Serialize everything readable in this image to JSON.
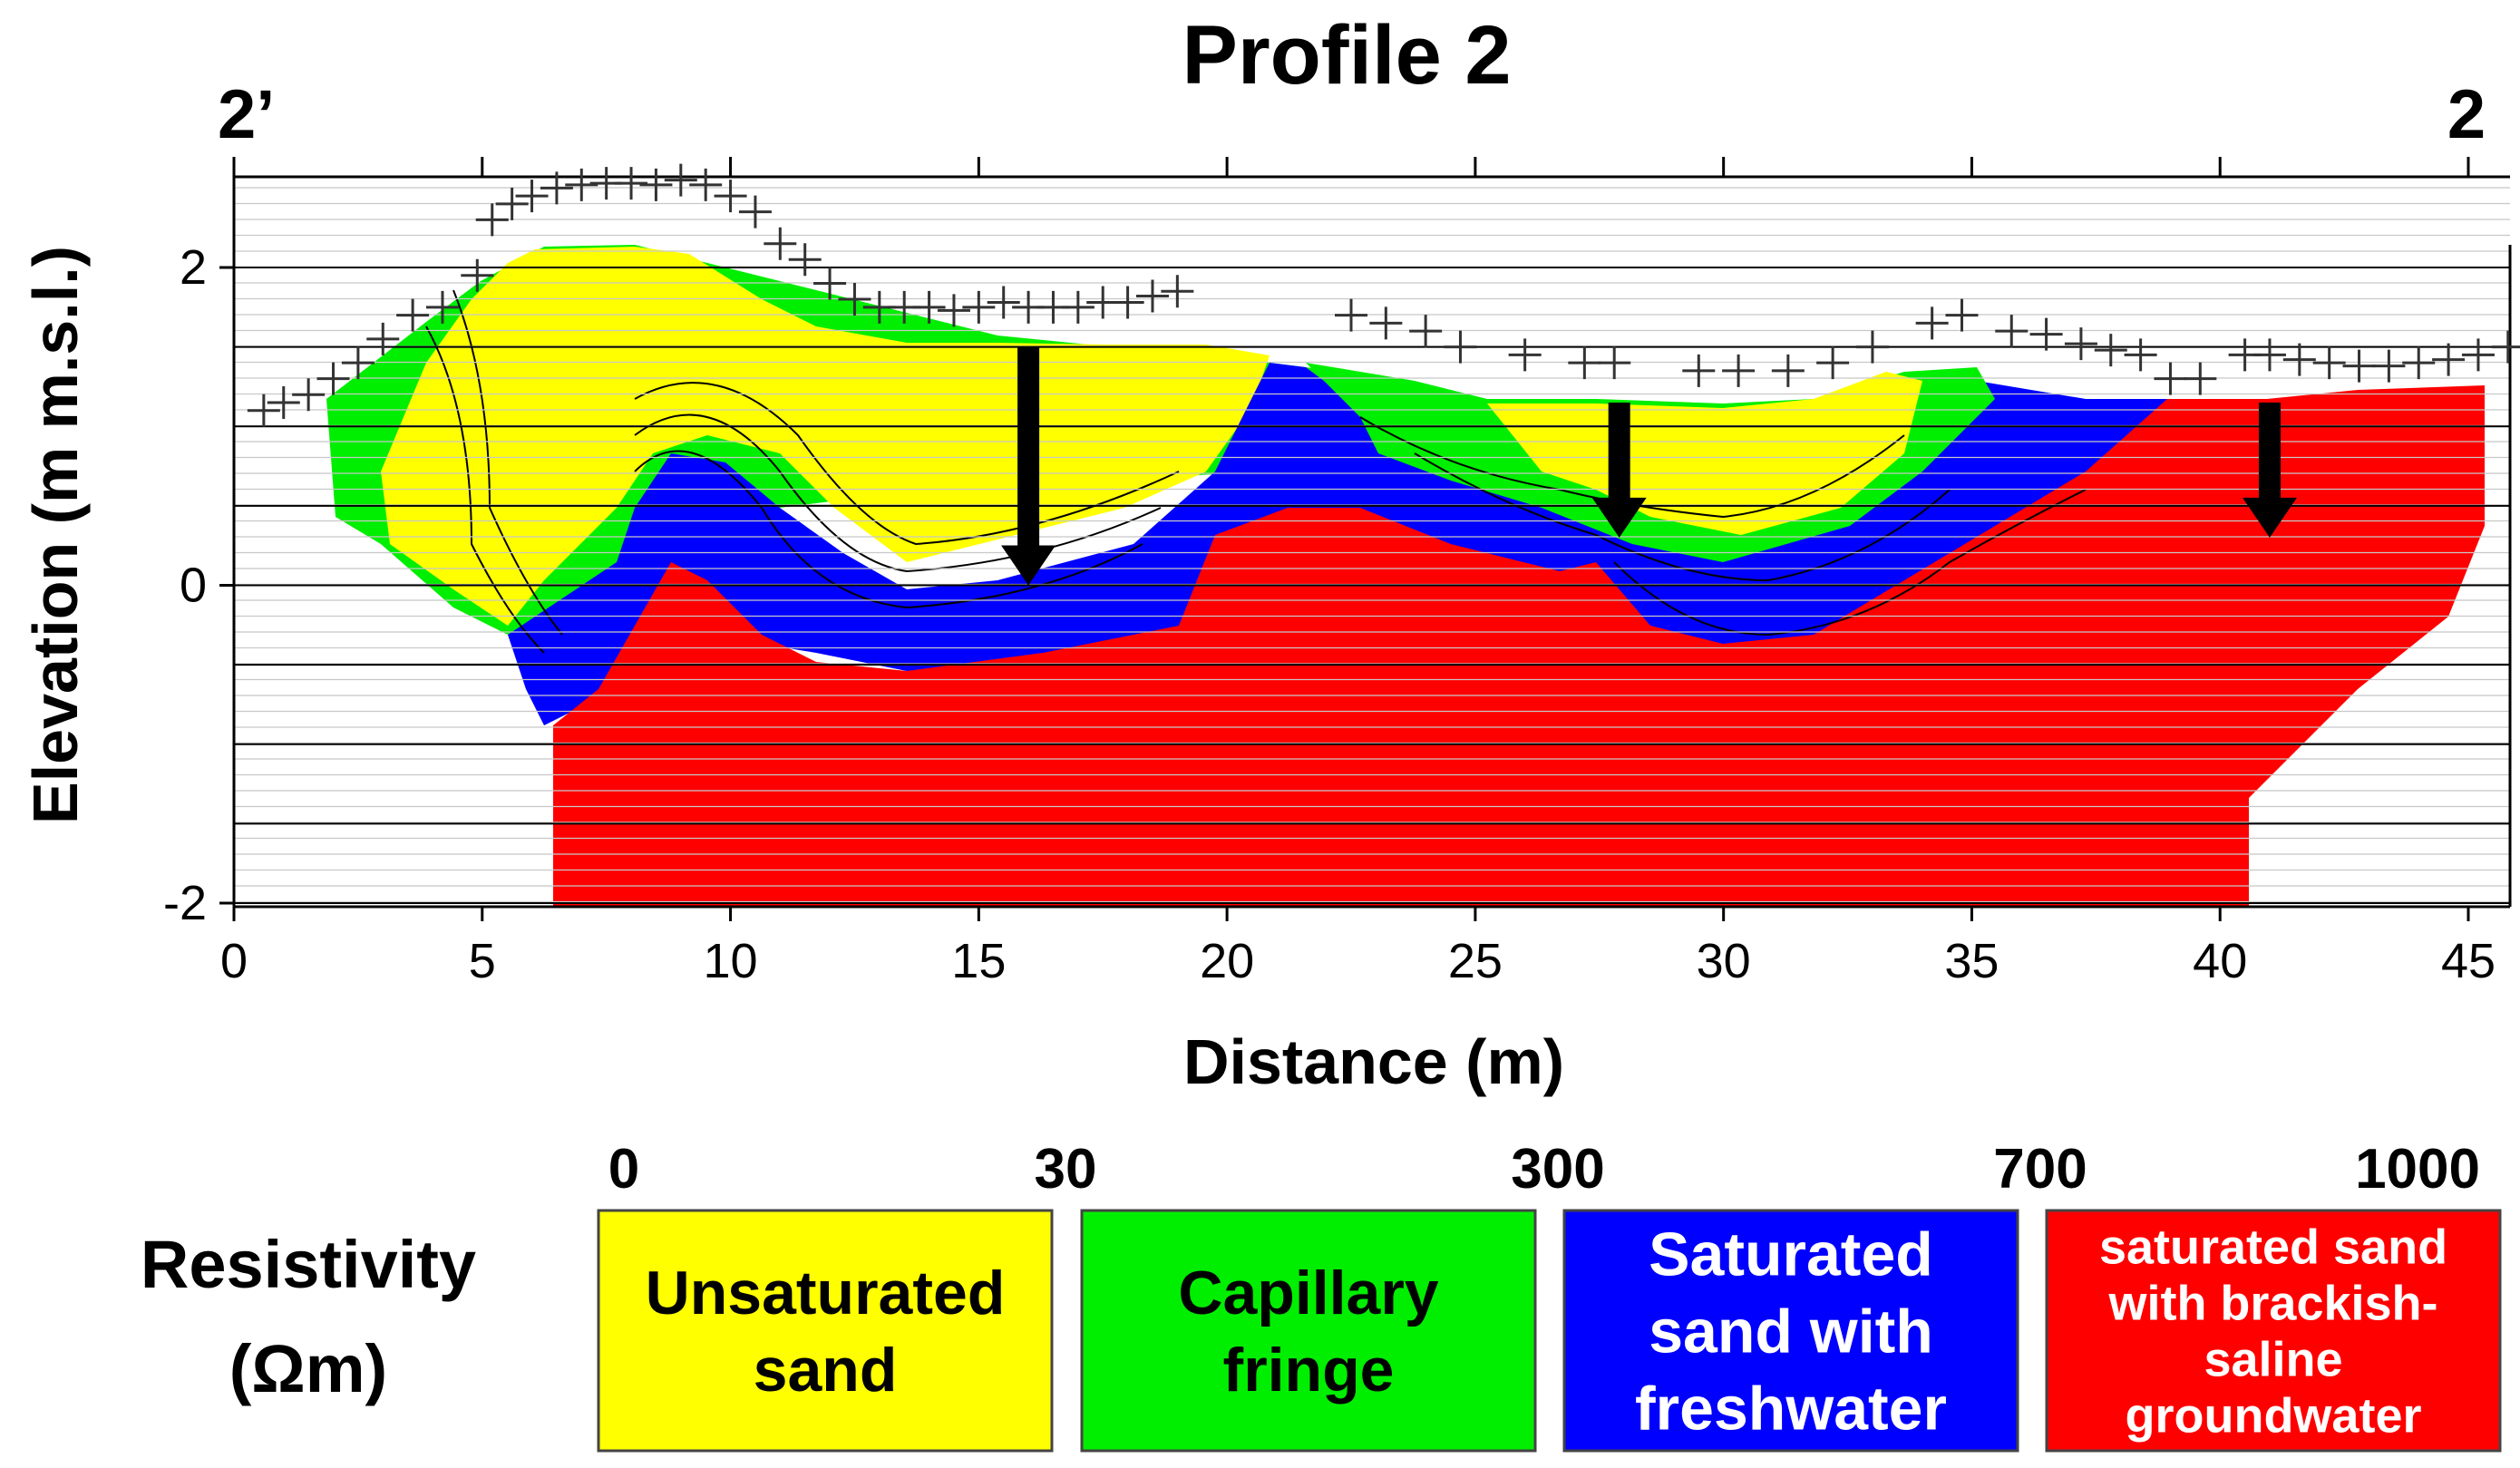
{
  "chart_data": {
    "type": "heatmap",
    "title": "Profile 2",
    "profile_start_label": "2’",
    "profile_end_label": "2",
    "xlabel": "Distance (m)",
    "ylabel": "Elevation (m m.s.l.)",
    "xlim": [
      0,
      46
    ],
    "ylim": [
      -2,
      2.6
    ],
    "x_ticks": [
      0,
      5,
      10,
      15,
      20,
      25,
      30,
      35,
      40,
      45
    ],
    "y_ticks": [
      -2,
      0,
      2
    ],
    "grid": true,
    "topography": [
      [
        0.6,
        1.1
      ],
      [
        1.0,
        1.15
      ],
      [
        1.5,
        1.2
      ],
      [
        2.0,
        1.3
      ],
      [
        2.5,
        1.4
      ],
      [
        3.0,
        1.55
      ],
      [
        3.6,
        1.7
      ],
      [
        4.2,
        1.75
      ],
      [
        4.9,
        1.95
      ],
      [
        5.2,
        2.3
      ],
      [
        5.6,
        2.4
      ],
      [
        6.0,
        2.45
      ],
      [
        6.5,
        2.5
      ],
      [
        7.0,
        2.52
      ],
      [
        7.5,
        2.53
      ],
      [
        8.0,
        2.53
      ],
      [
        8.5,
        2.52
      ],
      [
        9.0,
        2.55
      ],
      [
        9.5,
        2.52
      ],
      [
        10.0,
        2.45
      ],
      [
        10.5,
        2.35
      ],
      [
        11.0,
        2.15
      ],
      [
        11.5,
        2.05
      ],
      [
        12.0,
        1.9
      ],
      [
        12.5,
        1.8
      ],
      [
        13.0,
        1.75
      ],
      [
        13.5,
        1.75
      ],
      [
        14.0,
        1.75
      ],
      [
        14.5,
        1.73
      ],
      [
        15.0,
        1.75
      ],
      [
        15.5,
        1.78
      ],
      [
        16.0,
        1.75
      ],
      [
        16.5,
        1.75
      ],
      [
        17.0,
        1.75
      ],
      [
        17.5,
        1.78
      ],
      [
        18.0,
        1.78
      ],
      [
        18.5,
        1.82
      ],
      [
        19.0,
        1.85
      ],
      [
        22.5,
        1.7
      ],
      [
        23.2,
        1.65
      ],
      [
        24.0,
        1.6
      ],
      [
        24.7,
        1.5
      ],
      [
        26.0,
        1.45
      ],
      [
        27.2,
        1.4
      ],
      [
        27.8,
        1.4
      ],
      [
        29.5,
        1.35
      ],
      [
        30.3,
        1.35
      ],
      [
        31.3,
        1.35
      ],
      [
        32.2,
        1.4
      ],
      [
        33.0,
        1.5
      ],
      [
        34.2,
        1.65
      ],
      [
        34.8,
        1.7
      ],
      [
        35.8,
        1.6
      ],
      [
        36.5,
        1.58
      ],
      [
        37.2,
        1.52
      ],
      [
        37.8,
        1.48
      ],
      [
        38.4,
        1.45
      ],
      [
        39.0,
        1.3
      ],
      [
        39.6,
        1.3
      ],
      [
        40.5,
        1.45
      ],
      [
        41.0,
        1.45
      ],
      [
        41.6,
        1.42
      ],
      [
        42.2,
        1.4
      ],
      [
        42.8,
        1.38
      ],
      [
        43.4,
        1.38
      ],
      [
        44.0,
        1.4
      ],
      [
        44.6,
        1.42
      ],
      [
        45.2,
        1.45
      ],
      [
        45.8,
        1.5
      ]
    ],
    "groundwater_arrows": [
      {
        "x": 16.0,
        "y_top": 1.5,
        "y_bottom": 0.0
      },
      {
        "x": 27.9,
        "y_top": 1.15,
        "y_bottom": 0.3
      },
      {
        "x": 41.0,
        "y_top": 1.15,
        "y_bottom": 0.3
      }
    ],
    "legend": {
      "title_line1": "Resistivity",
      "title_line2": "(Ωm)",
      "breakpoints": [
        "0",
        "30",
        "300",
        "700",
        "1000"
      ],
      "classes": [
        {
          "range": [
            0,
            30
          ],
          "color": "#ffff00",
          "text_color": "#000000",
          "lines": [
            "Unsaturated",
            "sand"
          ]
        },
        {
          "range": [
            30,
            300
          ],
          "color": "#00ee00",
          "text_color": "#000000",
          "lines": [
            "Capillary",
            "fringe"
          ]
        },
        {
          "range": [
            300,
            700
          ],
          "color": "#0000ff",
          "text_color": "#ffffff",
          "lines": [
            "Saturated",
            "sand with",
            "freshwater"
          ]
        },
        {
          "range": [
            700,
            1000
          ],
          "color": "#ff0000",
          "text_color": "#ffffff",
          "lines": [
            "saturated sand",
            "with brackish-",
            "saline",
            "groundwater"
          ]
        }
      ]
    }
  }
}
